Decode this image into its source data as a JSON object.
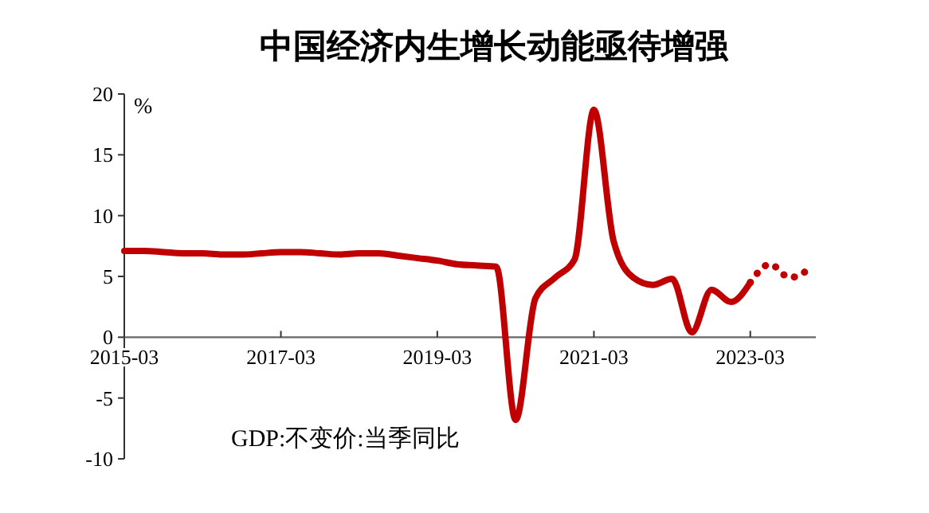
{
  "chart_data": {
    "type": "line",
    "title": "中国经济内生增长动能亟待增强",
    "ylabel": "%",
    "annotations": [
      "GDP:不变价:当季同比"
    ],
    "x": [
      "2015-03",
      "2015-06",
      "2015-09",
      "2015-12",
      "2016-03",
      "2016-06",
      "2016-09",
      "2016-12",
      "2017-03",
      "2017-06",
      "2017-09",
      "2017-12",
      "2018-03",
      "2018-06",
      "2018-09",
      "2018-12",
      "2019-03",
      "2019-06",
      "2019-09",
      "2019-12",
      "2020-03",
      "2020-06",
      "2020-09",
      "2020-12",
      "2021-03",
      "2021-06",
      "2021-09",
      "2021-12",
      "2022-03",
      "2022-06",
      "2022-09",
      "2022-12",
      "2023-03"
    ],
    "series": [
      {
        "color": "#c00000",
        "line_style": "solid",
        "values": [
          7.1,
          7.1,
          7.0,
          6.9,
          6.9,
          6.8,
          6.8,
          6.9,
          7.0,
          7.0,
          6.9,
          6.8,
          6.9,
          6.9,
          6.7,
          6.5,
          6.3,
          6.0,
          5.9,
          5.8,
          -6.8,
          3.2,
          4.9,
          6.4,
          18.7,
          7.9,
          4.9,
          4.3,
          4.8,
          0.4,
          3.9,
          2.9,
          4.5
        ]
      },
      {
        "color": "#c00000",
        "line_style": "dotted",
        "x": [
          "2023-03",
          "2023-06",
          "2023-09",
          "2023-12"
        ],
        "values": [
          4.5,
          6.0,
          4.9,
          5.6
        ]
      }
    ],
    "xlim": [
      "2015-03",
      "2024-01"
    ],
    "xticks": [
      "2015-03",
      "2017-03",
      "2019-03",
      "2021-03",
      "2023-03"
    ],
    "ylim": [
      -10,
      20
    ],
    "yticks": [
      -10,
      -5,
      0,
      5,
      10,
      15,
      20
    ],
    "grid": false
  }
}
